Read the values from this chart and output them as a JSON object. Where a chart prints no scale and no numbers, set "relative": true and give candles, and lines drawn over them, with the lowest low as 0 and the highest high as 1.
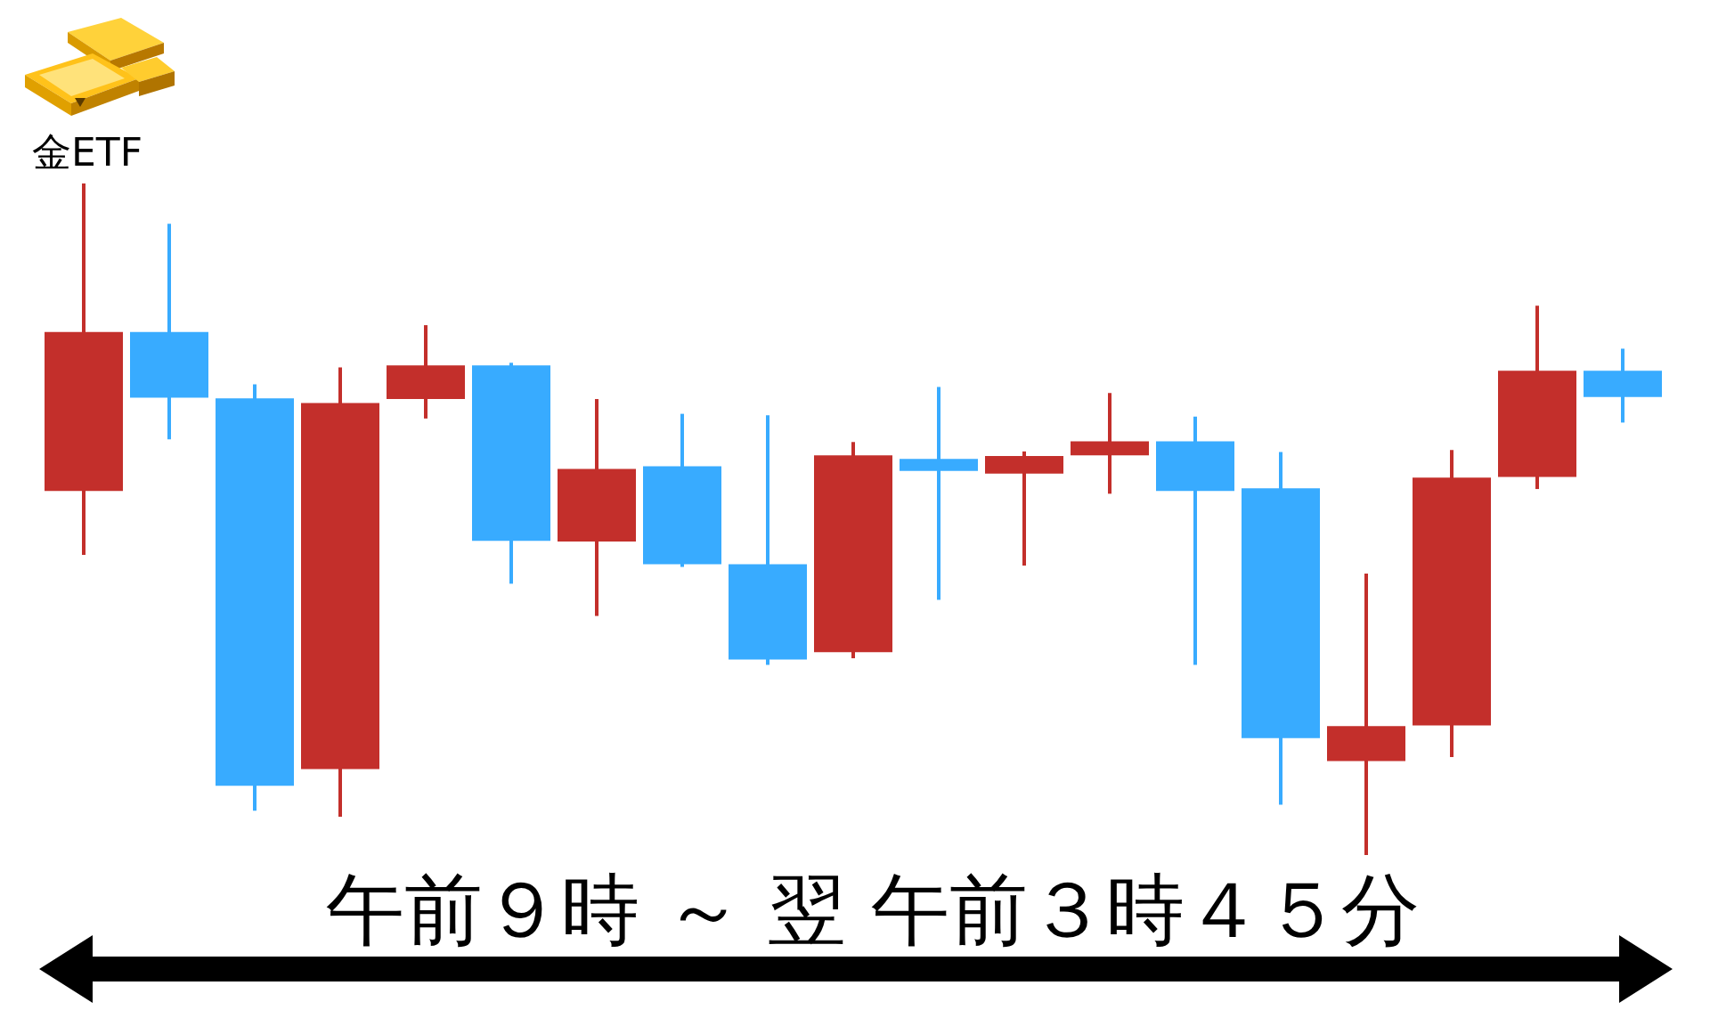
{
  "chart_data": {
    "type": "candlestick",
    "title": "金ETF",
    "xlabel": "午前９時 ～ 翌 午前３時４５分",
    "relative": true,
    "categories": [
      null,
      null,
      null,
      null,
      null,
      null,
      null,
      null,
      null,
      null,
      null,
      null,
      null,
      null,
      null,
      null,
      null,
      null,
      null
    ],
    "ohlc": [
      [
        0.542,
        1,
        0.447,
        0.779
      ],
      [
        0.779,
        0.94,
        0.619,
        0.681
      ],
      [
        0.68,
        0.701,
        0.066,
        0.103
      ],
      [
        0.128,
        0.726,
        0.057,
        0.673
      ],
      [
        0.679,
        0.789,
        0.65,
        0.729
      ],
      [
        0.729,
        0.733,
        0.404,
        0.468
      ],
      [
        0.467,
        0.679,
        0.356,
        0.575
      ],
      [
        0.579,
        0.657,
        0.429,
        0.433
      ],
      [
        0.433,
        0.655,
        0.283,
        0.291
      ],
      [
        0.302,
        0.615,
        0.293,
        0.595
      ],
      [
        0.59,
        0.697,
        0.38,
        0.572
      ],
      [
        0.568,
        0.601,
        0.431,
        0.594
      ],
      [
        0.595,
        0.688,
        0.538,
        0.616
      ],
      [
        0.616,
        0.653,
        0.283,
        0.542
      ],
      [
        0.546,
        0.6,
        0.075,
        0.174
      ],
      [
        0.14,
        0.419,
        0,
        0.192
      ],
      [
        0.193,
        0.603,
        0.146,
        0.562
      ],
      [
        0.563,
        0.818,
        0.545,
        0.721
      ],
      [
        0.721,
        0.754,
        0.644,
        0.682
      ]
    ],
    "colors": [
      "#c32f2b",
      "#38abff",
      "#38abff",
      "#c32f2b",
      "#c32f2b",
      "#38abff",
      "#c32f2b",
      "#38abff",
      "#38abff",
      "#c32f2b",
      "#38abff",
      "#c32f2b",
      "#c32f2b",
      "#38abff",
      "#38abff",
      "#c32f2b",
      "#c32f2b",
      "#c32f2b",
      "#38abff"
    ]
  }
}
